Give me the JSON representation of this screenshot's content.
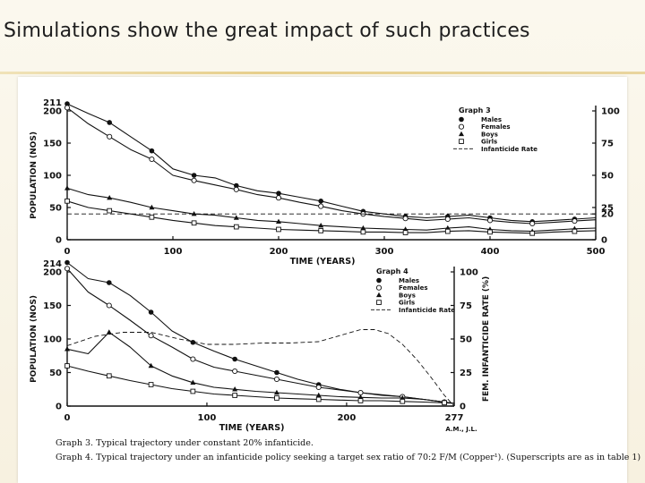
{
  "slide": {
    "title": "Simulations show the great impact of such practices"
  },
  "captions": [
    "Graph 3. Typical trajectory under constant 20% infanticide.",
    "Graph 4. Typical trajectory under an infanticide policy seeking a target sex ratio of 70:2 F/M (Copper¹). (Superscripts are as in table 1)"
  ],
  "credit": "A.M., J.L.",
  "colors": {
    "ink": "#111111",
    "rule": "#e7cf8c",
    "background": "#fdfbf3"
  },
  "chart_data": [
    {
      "type": "line",
      "title": "Graph 3",
      "xlabel": "TIME (YEARS)",
      "ylabel": "POPULATION (NOS)",
      "y2label": "",
      "xlim": [
        0,
        500
      ],
      "ylim": [
        0,
        200
      ],
      "y2lim": [
        0,
        100
      ],
      "xticks": [
        "0",
        "100",
        "200",
        "300",
        "400",
        "500"
      ],
      "yticks": [
        "0",
        "50",
        "100",
        "150",
        "200"
      ],
      "y2ticks": [
        "0",
        "20",
        "25",
        "50",
        "75",
        "100"
      ],
      "ymax_label": "211",
      "legend_position": "top-right",
      "series": [
        {
          "name": "Males",
          "marker": "filled-circle",
          "axis": "left",
          "x": [
            0,
            20,
            40,
            60,
            80,
            100,
            120,
            140,
            160,
            180,
            200,
            220,
            240,
            260,
            280,
            300,
            320,
            340,
            360,
            380,
            400,
            420,
            440,
            460,
            480,
            500
          ],
          "y": [
            211,
            196,
            182,
            160,
            138,
            110,
            100,
            96,
            84,
            76,
            72,
            66,
            60,
            52,
            44,
            40,
            36,
            34,
            36,
            38,
            34,
            30,
            28,
            30,
            32,
            34
          ]
        },
        {
          "name": "Females",
          "marker": "open-circle",
          "axis": "left",
          "x": [
            0,
            20,
            40,
            60,
            80,
            100,
            120,
            140,
            160,
            180,
            200,
            220,
            240,
            260,
            280,
            300,
            320,
            340,
            360,
            380,
            400,
            420,
            440,
            460,
            480,
            500
          ],
          "y": [
            205,
            180,
            160,
            140,
            125,
            100,
            92,
            85,
            78,
            70,
            65,
            58,
            52,
            45,
            40,
            36,
            33,
            30,
            32,
            34,
            30,
            27,
            25,
            27,
            29,
            31
          ]
        },
        {
          "name": "Boys",
          "marker": "filled-triangle",
          "axis": "left",
          "x": [
            0,
            20,
            40,
            60,
            80,
            100,
            120,
            140,
            160,
            180,
            200,
            220,
            240,
            260,
            280,
            300,
            320,
            340,
            360,
            380,
            400,
            420,
            440,
            460,
            480,
            500
          ],
          "y": [
            80,
            70,
            65,
            58,
            50,
            45,
            40,
            38,
            34,
            30,
            28,
            25,
            22,
            20,
            18,
            17,
            16,
            15,
            18,
            20,
            16,
            14,
            13,
            15,
            17,
            18
          ]
        },
        {
          "name": "Girls",
          "marker": "open-square",
          "axis": "left",
          "x": [
            0,
            20,
            40,
            60,
            80,
            100,
            120,
            140,
            160,
            180,
            200,
            220,
            240,
            260,
            280,
            300,
            320,
            340,
            360,
            380,
            400,
            420,
            440,
            460,
            480,
            500
          ],
          "y": [
            60,
            50,
            45,
            40,
            35,
            30,
            26,
            22,
            20,
            18,
            16,
            15,
            14,
            13,
            12,
            12,
            11,
            11,
            13,
            14,
            12,
            11,
            10,
            12,
            13,
            14
          ]
        },
        {
          "name": "Infanticide Rate",
          "marker": "dashed",
          "axis": "right",
          "x": [
            0,
            500
          ],
          "y": [
            20,
            20
          ]
        }
      ]
    },
    {
      "type": "line",
      "title": "Graph 4",
      "xlabel": "TIME (YEARS)",
      "ylabel": "POPULATION (NOS)",
      "y2label": "FEM. INFANTICIDE RATE (%)",
      "xlim": [
        0,
        277
      ],
      "ylim": [
        0,
        200
      ],
      "y2lim": [
        0,
        100
      ],
      "xticks": [
        "0",
        "100",
        "200",
        "277"
      ],
      "yticks": [
        "0",
        "50",
        "100",
        "150",
        "200"
      ],
      "y2ticks": [
        "0",
        "25",
        "50",
        "75",
        "100"
      ],
      "ymax_label": "214",
      "legend_position": "top-right",
      "series": [
        {
          "name": "Males",
          "marker": "filled-circle",
          "axis": "left",
          "x": [
            0,
            15,
            30,
            45,
            60,
            75,
            90,
            105,
            120,
            135,
            150,
            165,
            180,
            195,
            210,
            225,
            240,
            255,
            270,
            277
          ],
          "y": [
            214,
            190,
            184,
            165,
            140,
            112,
            95,
            82,
            70,
            60,
            50,
            40,
            32,
            25,
            20,
            17,
            14,
            10,
            6,
            4
          ]
        },
        {
          "name": "Females",
          "marker": "open-circle",
          "axis": "left",
          "x": [
            0,
            15,
            30,
            45,
            60,
            75,
            90,
            105,
            120,
            135,
            150,
            165,
            180,
            195,
            210,
            225,
            240,
            255,
            270,
            277
          ],
          "y": [
            205,
            170,
            150,
            128,
            105,
            88,
            70,
            58,
            52,
            46,
            40,
            34,
            28,
            24,
            20,
            16,
            14,
            10,
            6,
            4
          ]
        },
        {
          "name": "Boys",
          "marker": "filled-triangle",
          "axis": "left",
          "x": [
            0,
            15,
            30,
            45,
            60,
            75,
            90,
            105,
            120,
            135,
            150,
            165,
            180,
            195,
            210,
            225,
            240,
            255,
            270,
            277
          ],
          "y": [
            85,
            78,
            110,
            88,
            60,
            45,
            35,
            28,
            25,
            22,
            20,
            18,
            16,
            14,
            13,
            12,
            12,
            10,
            6,
            4
          ]
        },
        {
          "name": "Girls",
          "marker": "open-square",
          "axis": "left",
          "x": [
            0,
            15,
            30,
            45,
            60,
            75,
            90,
            105,
            120,
            135,
            150,
            165,
            180,
            195,
            210,
            225,
            240,
            255,
            270,
            277
          ],
          "y": [
            60,
            52,
            45,
            38,
            32,
            26,
            22,
            18,
            16,
            14,
            12,
            11,
            10,
            9,
            8,
            8,
            7,
            6,
            5,
            4
          ]
        },
        {
          "name": "Infanticide Rate",
          "marker": "dashed",
          "axis": "right",
          "x": [
            0,
            20,
            40,
            60,
            80,
            100,
            120,
            140,
            160,
            180,
            200,
            210,
            220,
            230,
            240,
            250,
            260,
            270,
            277
          ],
          "y": [
            45,
            52,
            55,
            55,
            50,
            46,
            46,
            47,
            47,
            48,
            54,
            57,
            57,
            54,
            46,
            35,
            22,
            8,
            0
          ]
        }
      ]
    }
  ]
}
